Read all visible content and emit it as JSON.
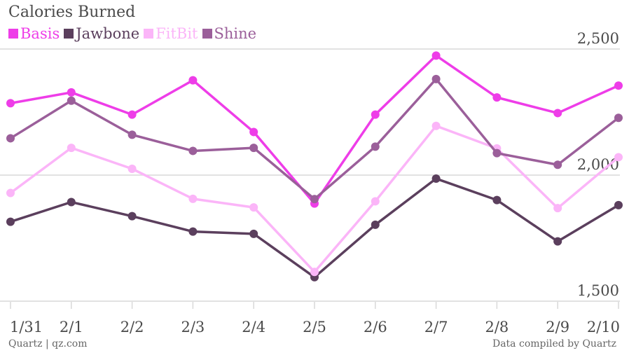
{
  "title": "Calories Burned",
  "source": "Quartz | qz.com",
  "note": "Data compiled by Quartz",
  "chart_data": {
    "type": "line",
    "title": "Calories Burned",
    "categories": [
      "1/31",
      "2/1",
      "2/2",
      "2/3",
      "2/4",
      "2/5",
      "2/6",
      "2/7",
      "2/8",
      "2/9",
      "2/10"
    ],
    "y_ticks": [
      1500,
      2000,
      2500
    ],
    "y_tick_labels": [
      "1,500",
      "2,000",
      "2,500"
    ],
    "ylim": [
      1500,
      2500
    ],
    "grid": true,
    "legend_position": "top-left",
    "series": [
      {
        "name": "Basis",
        "color": "#ee3de8",
        "values": [
          2285,
          2328,
          2240,
          2376,
          2171,
          1887,
          2240,
          2474,
          2308,
          2246,
          2355
        ]
      },
      {
        "name": "Jawbone",
        "color": "#5b3f5d",
        "values": [
          1815,
          1893,
          1837,
          1776,
          1767,
          1595,
          1803,
          1986,
          1901,
          1737,
          1881
        ]
      },
      {
        "name": "FitBit",
        "color": "#fbb5f8",
        "values": [
          1929,
          2108,
          2025,
          1906,
          1872,
          1616,
          1896,
          2195,
          2106,
          1869,
          2071
        ]
      },
      {
        "name": "Shine",
        "color": "#9b5f9a",
        "values": [
          2146,
          2295,
          2160,
          2096,
          2108,
          1905,
          2113,
          2381,
          2087,
          2041,
          2227
        ]
      }
    ]
  }
}
